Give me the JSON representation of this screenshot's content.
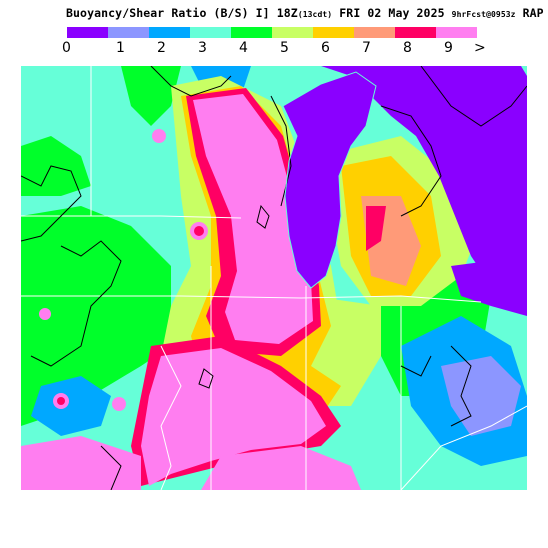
{
  "header": {
    "title_main": "Buoyancy/Shear Ratio (B/S)",
    "title_time": "I] 18Z",
    "title_local": "(13cdt)",
    "title_date": "FRI 02 May 2025",
    "title_fcst": "9hrFcst@0953z",
    "title_model": "RAP"
  },
  "legend": {
    "bins": [
      {
        "label": "0",
        "color": "#8a00ff"
      },
      {
        "label": "1",
        "color": "#8c96ff"
      },
      {
        "label": "2",
        "color": "#00a8ff"
      },
      {
        "label": "3",
        "color": "#66ffd8"
      },
      {
        "label": "4",
        "color": "#00ff2a"
      },
      {
        "label": "5",
        "color": "#c8ff64"
      },
      {
        "label": "6",
        "color": "#ffd000"
      },
      {
        "label": "7",
        "color": "#ff9a78"
      },
      {
        "label": "8",
        "color": "#ff0064"
      },
      {
        "label": "9",
        "color": "#ff7ef0"
      }
    ],
    "overflow_label": ">"
  },
  "map": {
    "lake_color": "#8a00ff",
    "outline_color": "#000000",
    "boundary_color": "#ffffff"
  }
}
